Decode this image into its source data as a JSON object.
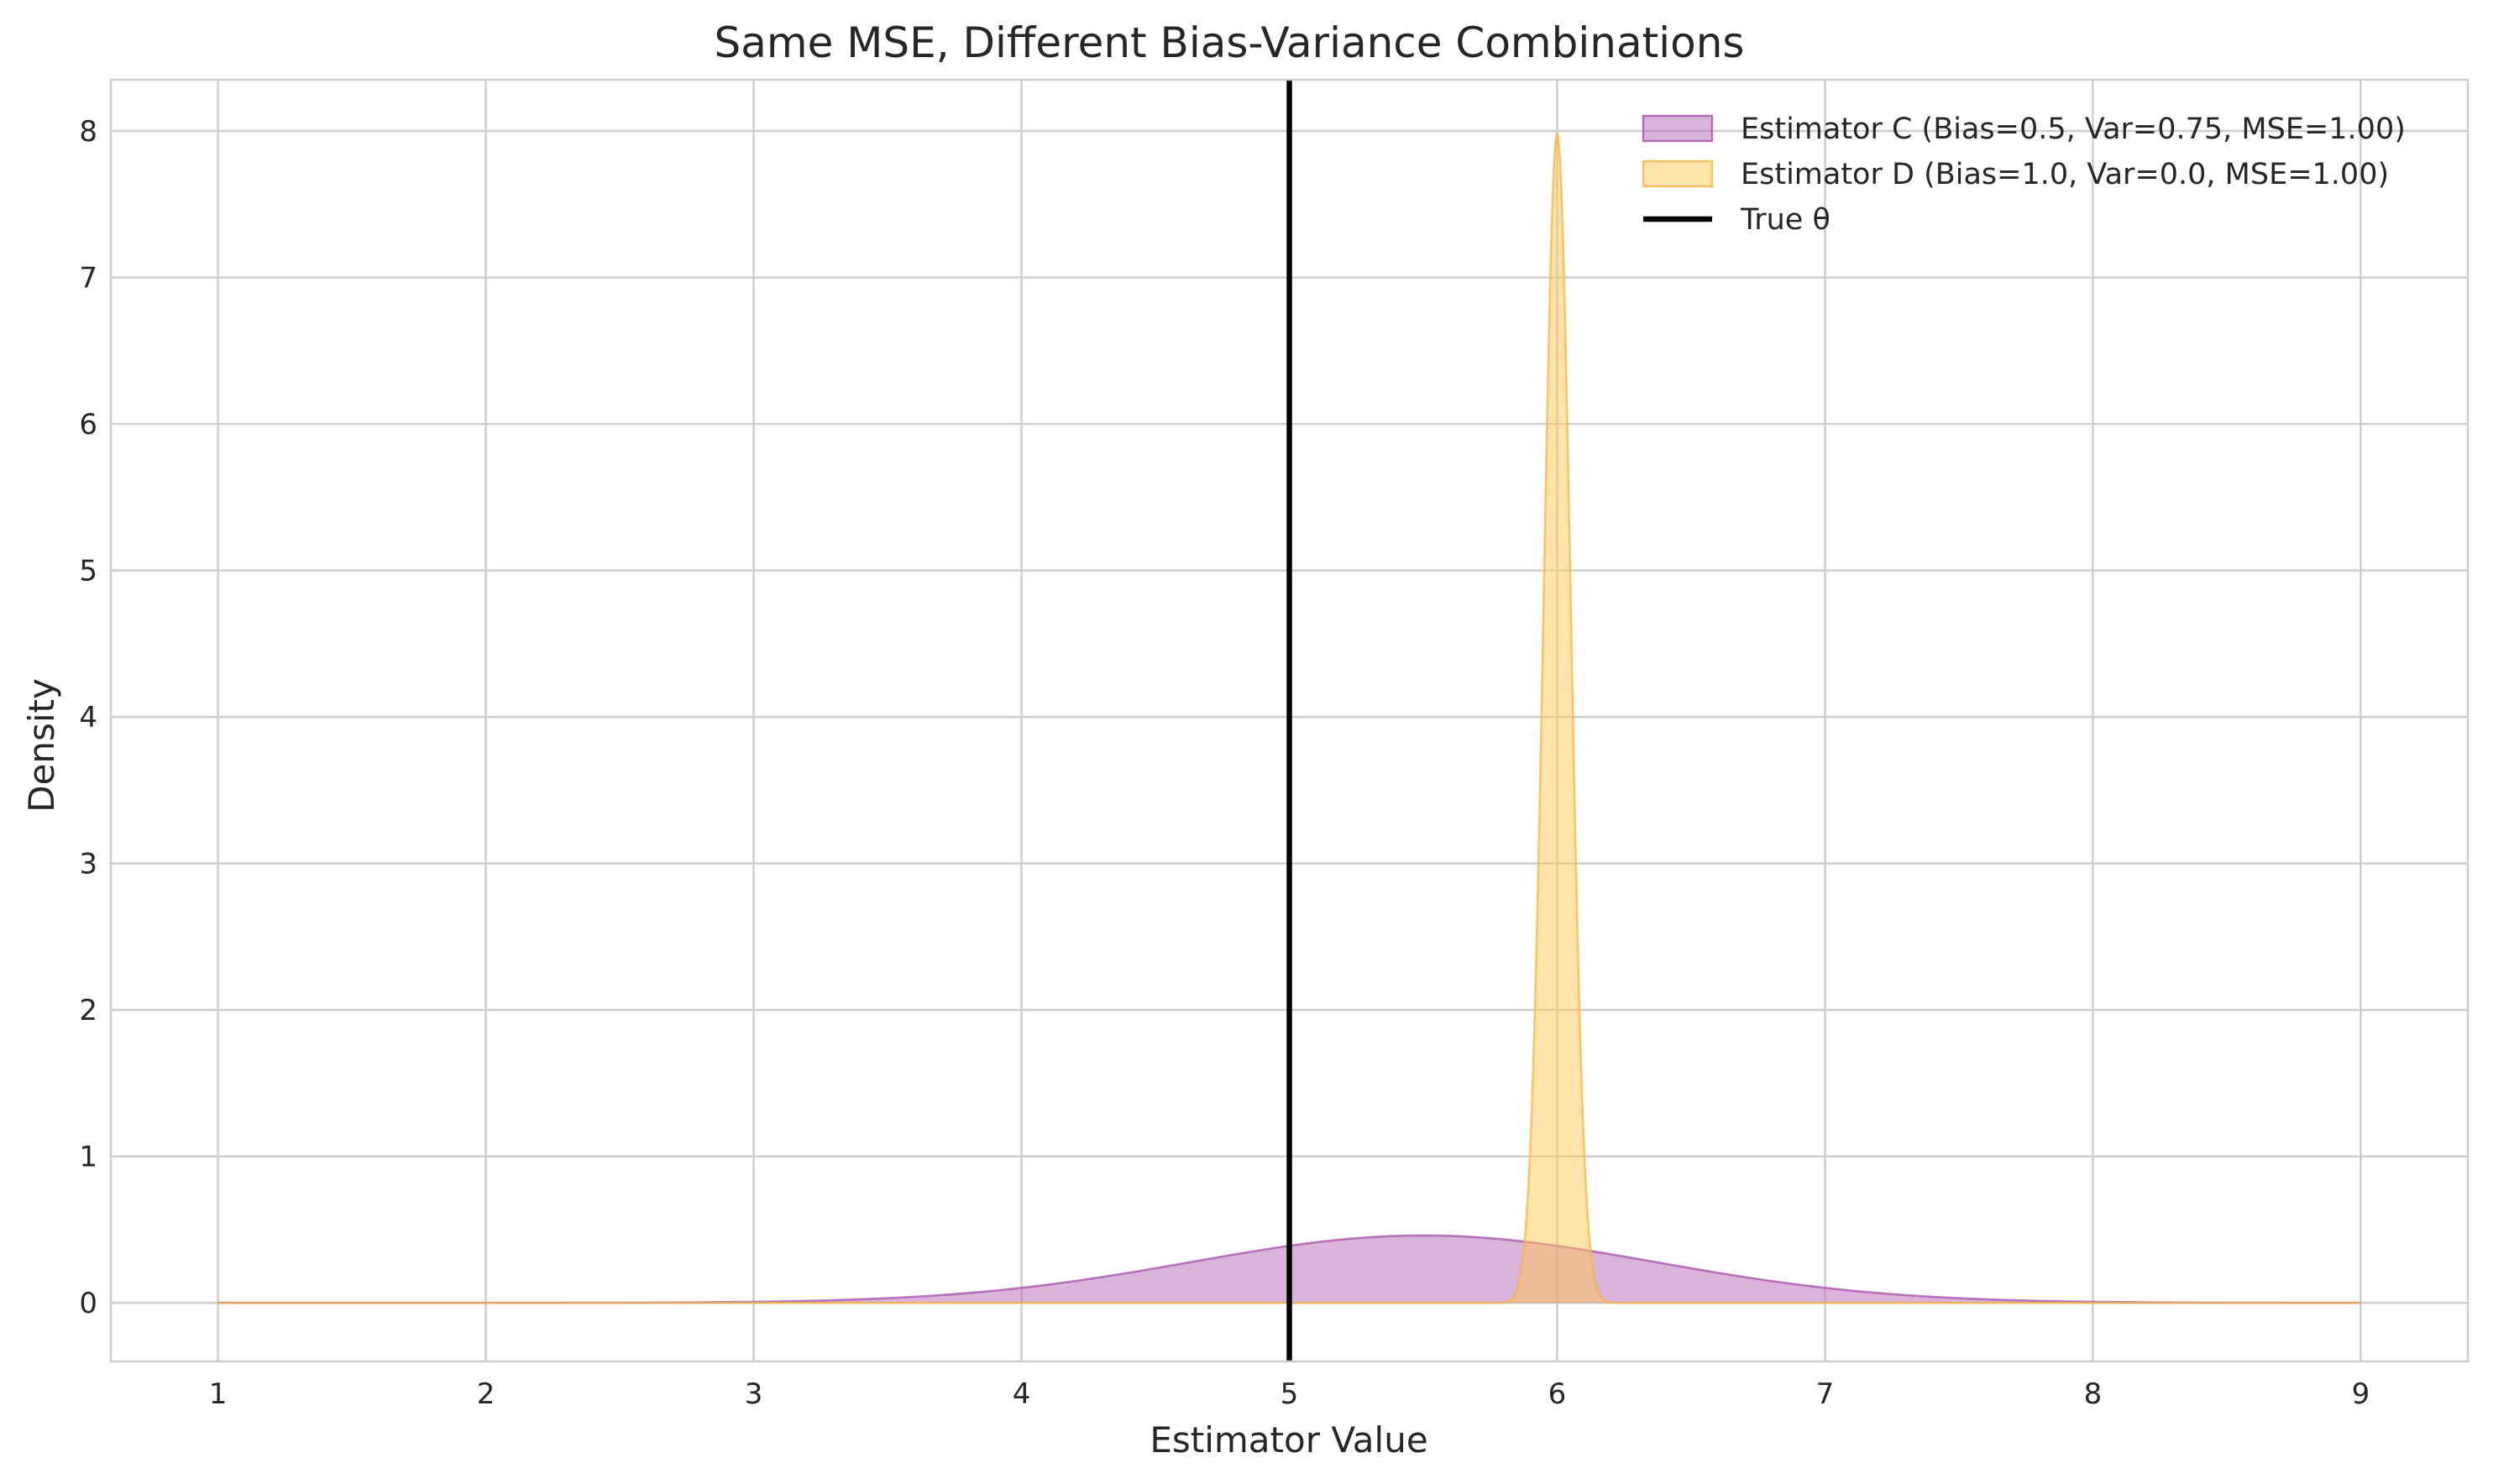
{
  "chart_data": {
    "type": "area",
    "title": "Same MSE, Different Bias-Variance Combinations",
    "xlabel": "Estimator Value",
    "ylabel": "Density",
    "xlim": [
      0.6,
      9.4
    ],
    "ylim": [
      -0.4,
      8.35
    ],
    "xticks": [
      1,
      2,
      3,
      4,
      5,
      6,
      7,
      8,
      9
    ],
    "yticks": [
      0,
      1,
      2,
      3,
      4,
      5,
      6,
      7,
      8
    ],
    "grid": true,
    "legend_position": "top-right",
    "series": [
      {
        "name": "Estimator C (Bias=0.5, Var=0.75, MSE=1.00)",
        "kind": "normal-density",
        "mean": 5.5,
        "variance": 0.75,
        "peak_density": 0.46,
        "x_range": [
          1,
          9
        ],
        "fill_color": "#b565b9",
        "edge_color": "#a64fab"
      },
      {
        "name": "Estimator D (Bias=1.0, Var=0.0, MSE=1.00)",
        "kind": "normal-density",
        "mean": 6.0,
        "std": 0.05,
        "peak_density": 7.98,
        "x_range": [
          1,
          9
        ],
        "fill_color": "#ffc857",
        "edge_color": "#f5b642"
      }
    ],
    "reference_lines": [
      {
        "name": "True θ",
        "orientation": "vertical",
        "x": 5.0,
        "color": "#000000"
      }
    ]
  }
}
